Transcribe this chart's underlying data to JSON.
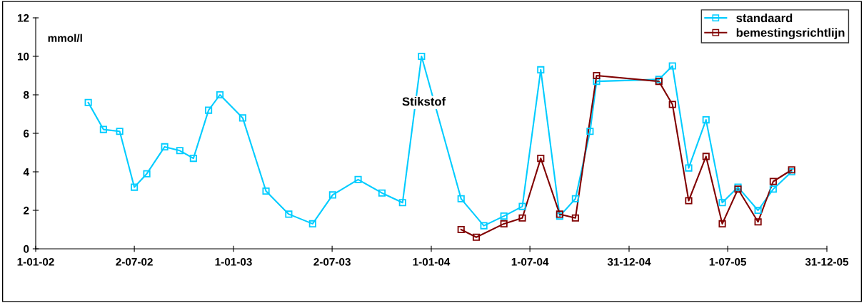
{
  "chart_data": {
    "type": "line",
    "ylabel": "mmol/l",
    "annotations": [
      "Stikstof"
    ],
    "xlim": [
      "2002-01-01",
      "2005-12-31"
    ],
    "xticks": [
      {
        "value": "2002-01-01",
        "label": "1-01-02"
      },
      {
        "value": "2002-07-02",
        "label": "2-07-02"
      },
      {
        "value": "2003-01-01",
        "label": "1-01-03"
      },
      {
        "value": "2003-07-02",
        "label": "2-07-03"
      },
      {
        "value": "2004-01-01",
        "label": "1-01-04"
      },
      {
        "value": "2004-07-01",
        "label": "1-07-04"
      },
      {
        "value": "2004-12-31",
        "label": "31-12-04"
      },
      {
        "value": "2005-07-01",
        "label": "1-07-05"
      },
      {
        "value": "2005-12-31",
        "label": "31-12-05"
      }
    ],
    "ylim": [
      0,
      12
    ],
    "yticks": [
      0,
      2,
      4,
      6,
      8,
      10,
      12
    ],
    "marker": "square",
    "line_style": "solid",
    "grid": false,
    "legend": "top right",
    "series": [
      {
        "name": "standaard",
        "color": "#00ccff",
        "x": [
          "2002-04-08",
          "2002-05-06",
          "2002-06-05",
          "2002-07-02",
          "2002-07-25",
          "2002-08-27",
          "2002-09-24",
          "2002-10-19",
          "2002-11-16",
          "2002-12-07",
          "2003-01-18",
          "2003-03-02",
          "2003-04-13",
          "2003-05-27",
          "2003-07-03",
          "2003-08-19",
          "2003-10-02",
          "2003-11-09",
          "2003-12-14",
          "2004-02-25",
          "2004-04-07",
          "2004-05-14",
          "2004-06-17",
          "2004-07-21",
          "2004-08-25",
          "2004-09-23",
          "2004-10-20",
          "2004-11-01",
          "2005-02-24",
          "2005-03-21",
          "2005-04-20",
          "2005-05-22",
          "2005-06-21",
          "2005-07-20",
          "2005-08-26",
          "2005-09-23",
          "2005-10-27"
        ],
        "values": [
          7.6,
          6.2,
          6.1,
          3.2,
          3.9,
          5.3,
          5.1,
          4.7,
          7.2,
          8.0,
          6.8,
          3.0,
          1.8,
          1.3,
          2.8,
          3.6,
          2.9,
          2.4,
          10.0,
          2.6,
          1.2,
          1.7,
          2.2,
          9.3,
          1.7,
          2.6,
          6.1,
          8.7,
          8.8,
          9.5,
          4.2,
          6.7,
          2.4,
          3.2,
          2.0,
          3.1,
          4.0
        ]
      },
      {
        "name": "bemestingsrichtlijn",
        "color": "#800000",
        "x": [
          "2004-02-25",
          "2004-03-24",
          "2004-05-14",
          "2004-06-17",
          "2004-07-21",
          "2004-08-25",
          "2004-09-23",
          "2004-11-01",
          "2005-02-24",
          "2005-03-21",
          "2005-04-20",
          "2005-05-22",
          "2005-06-21",
          "2005-07-20",
          "2005-08-26",
          "2005-09-23",
          "2005-10-27"
        ],
        "values": [
          1.0,
          0.6,
          1.3,
          1.6,
          4.7,
          1.8,
          1.6,
          9.0,
          8.7,
          7.5,
          2.5,
          4.8,
          1.3,
          3.1,
          1.4,
          3.5,
          4.1
        ]
      }
    ]
  }
}
